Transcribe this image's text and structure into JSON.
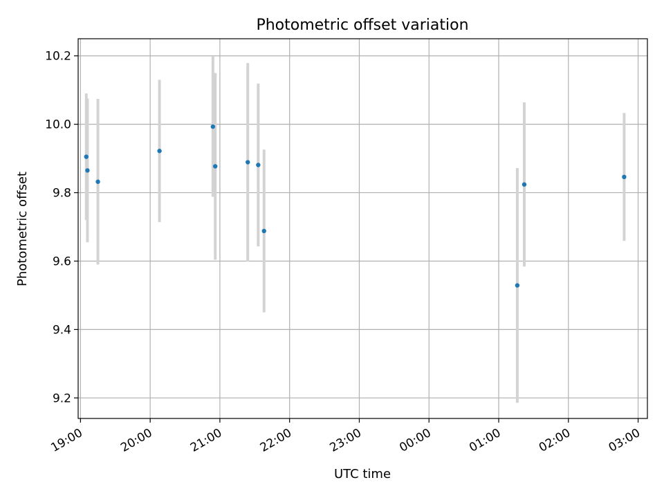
{
  "chart_data": {
    "type": "scatter",
    "title": "Photometric offset variation",
    "xlabel": "UTC time",
    "ylabel": "Photometric offset",
    "x_ticks": [
      "19:00",
      "20:00",
      "21:00",
      "22:00",
      "23:00",
      "00:00",
      "01:00",
      "02:00",
      "03:00"
    ],
    "y_ticks": [
      "9.2",
      "9.4",
      "9.6",
      "9.8",
      "10.0",
      "10.2"
    ],
    "xlim": [
      "18:58",
      "03:08"
    ],
    "ylim": [
      9.14,
      10.25
    ],
    "grid": true,
    "colors": {
      "points": "#1f77b4",
      "errorbars": "#d3d3d3",
      "grid": "#b0b0b0"
    },
    "series": [
      {
        "points": [
          {
            "x": "19:05",
            "y": 9.905,
            "yerr": 0.185
          },
          {
            "x": "19:06",
            "y": 9.865,
            "yerr": 0.21
          },
          {
            "x": "19:15",
            "y": 9.832,
            "yerr": 0.242
          },
          {
            "x": "20:08",
            "y": 9.922,
            "yerr": 0.208
          },
          {
            "x": "20:54",
            "y": 9.993,
            "yerr": 0.205
          },
          {
            "x": "20:56",
            "y": 9.877,
            "yerr": 0.273
          },
          {
            "x": "21:24",
            "y": 9.889,
            "yerr": 0.29
          },
          {
            "x": "21:33",
            "y": 9.881,
            "yerr": 0.238
          },
          {
            "x": "21:38",
            "y": 9.688,
            "yerr": 0.238
          },
          {
            "x": "01:16",
            "y": 9.529,
            "yerr": 0.343
          },
          {
            "x": "01:22",
            "y": 9.824,
            "yerr": 0.24
          },
          {
            "x": "02:48",
            "y": 9.846,
            "yerr": 0.187
          }
        ]
      }
    ]
  }
}
